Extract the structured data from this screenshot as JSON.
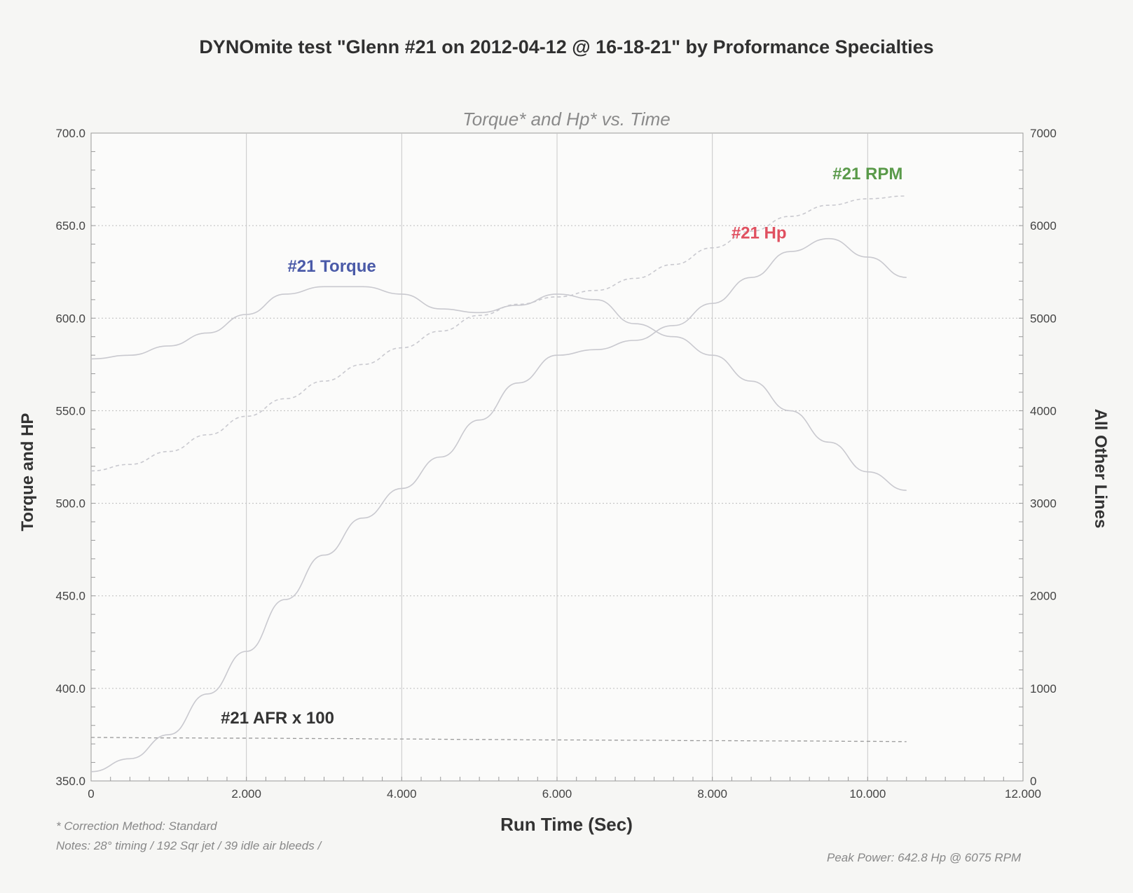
{
  "title": "DYNOmite test \"Glenn #21 on 2012-04-12 @ 16-18-21\" by Proformance Specialties",
  "chart_data": {
    "type": "line",
    "subtitle": "Torque* and Hp* vs. Time",
    "xlabel": "Run Time (Sec)",
    "ylabel_left": "Torque and HP",
    "ylabel_right": "All Other Lines",
    "xlim": [
      0,
      12
    ],
    "ylim_left": [
      350,
      700
    ],
    "ylim_right": [
      0,
      7000
    ],
    "x_ticks": [
      "0",
      "2.000",
      "4.000",
      "6.000",
      "8.000",
      "10.000",
      "12.000"
    ],
    "y_left_ticks": [
      "350.0",
      "400.0",
      "450.0",
      "500.0",
      "550.0",
      "600.0",
      "650.0",
      "700.0"
    ],
    "y_right_ticks": [
      "0",
      "1000",
      "2000",
      "3000",
      "4000",
      "5000",
      "6000",
      "7000"
    ],
    "grid": true,
    "series": [
      {
        "name": "#21 Torque",
        "axis": "left",
        "color": "#4a5aa8",
        "x": [
          0,
          0.5,
          1,
          1.5,
          2,
          2.5,
          3,
          3.5,
          4,
          4.5,
          5,
          5.5,
          6,
          6.5,
          7,
          7.5,
          8,
          8.5,
          9,
          9.5,
          10,
          10.5
        ],
        "y": [
          578,
          580,
          585,
          592,
          602,
          613,
          617,
          617,
          613,
          605,
          603,
          607,
          613,
          610,
          597,
          590,
          580,
          566,
          550,
          533,
          517,
          507
        ]
      },
      {
        "name": "#21 Hp",
        "axis": "left",
        "color": "#e05060",
        "x": [
          0,
          0.5,
          1,
          1.5,
          2,
          2.5,
          3,
          3.5,
          4,
          4.5,
          5,
          5.5,
          6,
          6.5,
          7,
          7.5,
          8,
          8.5,
          9,
          9.5,
          10,
          10.5
        ],
        "y": [
          355,
          362,
          375,
          397,
          420,
          448,
          472,
          492,
          508,
          525,
          545,
          565,
          580,
          583,
          588,
          596,
          608,
          622,
          636,
          643,
          633,
          622
        ]
      },
      {
        "name": "#21 RPM",
        "axis": "right",
        "color": "#5a9a4a",
        "x": [
          0,
          0.5,
          1,
          1.5,
          2,
          2.5,
          3,
          3.5,
          4,
          4.5,
          5,
          5.5,
          6,
          6.5,
          7,
          7.5,
          8,
          8.5,
          9,
          9.5,
          10,
          10.5
        ],
        "y": [
          3350,
          3420,
          3560,
          3740,
          3940,
          4130,
          4320,
          4500,
          4680,
          4860,
          5030,
          5150,
          5230,
          5300,
          5430,
          5580,
          5760,
          5940,
          6100,
          6220,
          6290,
          6320
        ]
      },
      {
        "name": "#21 AFR x 100",
        "axis": "right",
        "color": "#555555",
        "x": [
          0,
          1,
          2,
          3,
          4,
          5,
          6,
          7,
          8,
          9,
          10,
          10.5
        ],
        "y": [
          470,
          465,
          462,
          458,
          453,
          448,
          443,
          440,
          435,
          432,
          428,
          425
        ]
      }
    ]
  },
  "footnotes": {
    "correction": "* Correction Method: Standard",
    "notes": "Notes: 28° timing / 192 Sqr jet / 39 idle air bleeds /",
    "peak": "Peak Power: 642.8 Hp @ 6075 RPM"
  }
}
